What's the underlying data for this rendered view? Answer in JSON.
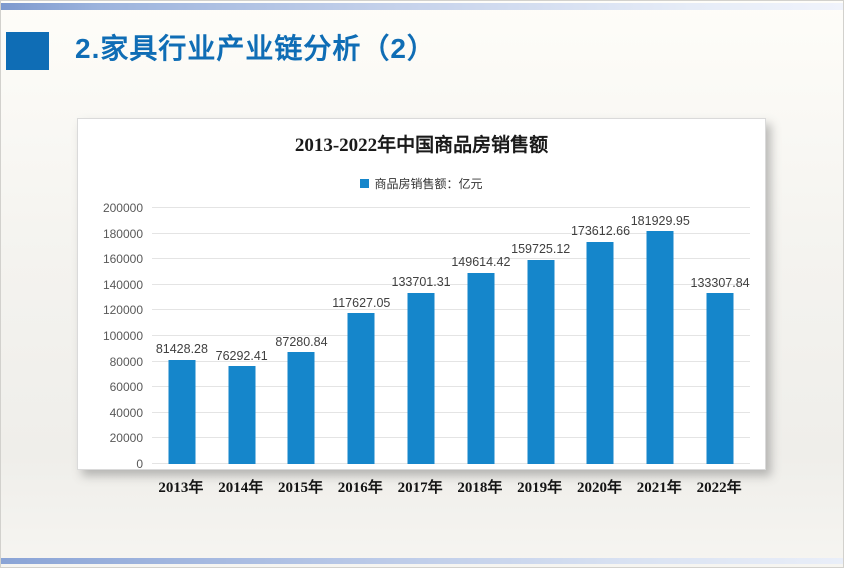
{
  "slide": {
    "title": "2.家具行业产业链分析（2）"
  },
  "colors": {
    "accent_blue": "#0F6DB5",
    "bar_blue": "#1586CB",
    "grid_gray": "#E4E4E4",
    "decor_bar_blue": "#8AA4D6"
  },
  "chart_data": {
    "type": "bar",
    "title": "2013-2022年中国商品房销售额",
    "legend": "商品房销售额：亿元",
    "legend_position": "top",
    "grid": true,
    "categories": [
      "2013年",
      "2014年",
      "2015年",
      "2016年",
      "2017年",
      "2018年",
      "2019年",
      "2020年",
      "2021年",
      "2022年"
    ],
    "values": [
      81428.28,
      76292.41,
      87280.84,
      117627.05,
      133701.31,
      149614.42,
      159725.12,
      173612.66,
      181929.95,
      133307.84
    ],
    "value_labels": [
      "81428.28",
      "76292.41",
      "87280.84",
      "117627.05",
      "133701.31",
      "149614.42",
      "159725.12",
      "173612.66",
      "181929.95",
      "133307.84"
    ],
    "xlabel": "",
    "ylabel": "",
    "ylim": [
      0,
      200000
    ],
    "ytick_step": 20000,
    "ytick_labels": [
      "0",
      "20000",
      "40000",
      "60000",
      "80000",
      "100000",
      "120000",
      "140000",
      "160000",
      "180000",
      "200000"
    ]
  }
}
